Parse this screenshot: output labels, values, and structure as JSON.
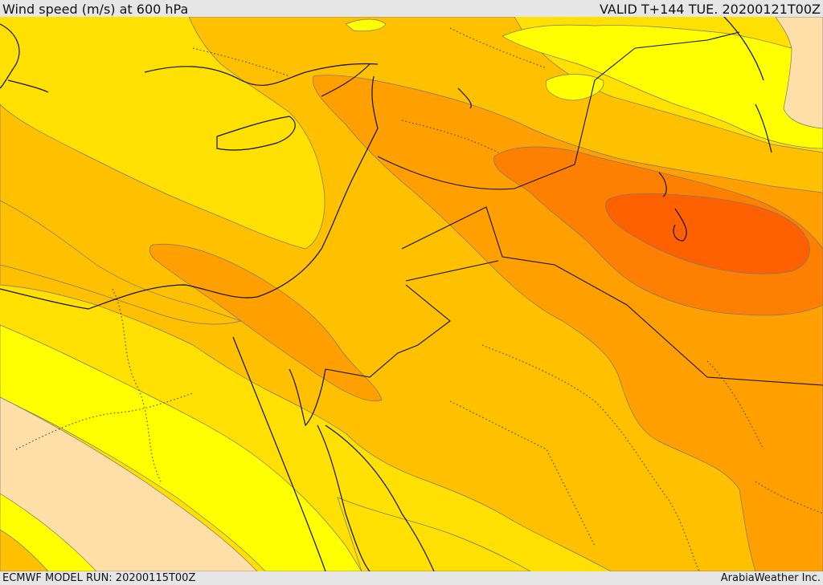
{
  "header": {
    "title": "Wind speed (m/s) at 600 hPa",
    "valid_time": "VALID T+144 TUE. 20200121T00Z"
  },
  "footer": {
    "model_run": "ECMWF MODEL RUN: 20200115T00Z",
    "credit": "ArabiaWeather Inc."
  },
  "map": {
    "variable": "wind speed",
    "level_hpa": 600,
    "units": "m/s",
    "region": "Middle East",
    "colors": {
      "pale": "#ffdfa8",
      "yellow": "#ffff00",
      "gold_yellow": "#ffe000",
      "amber": "#ffc000",
      "orange": "#ffa000",
      "dark_orange": "#ff8000",
      "red_orange": "#ff6000"
    }
  }
}
